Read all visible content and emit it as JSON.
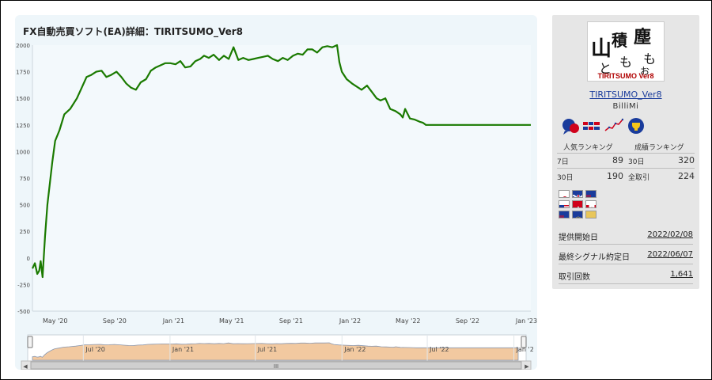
{
  "chart": {
    "title": "FX自動売買ソフト(EA)詳細：TIRITSUMO_Ver8",
    "y_ticks": [
      "2000",
      "1750",
      "1500",
      "1250",
      "1000",
      "750",
      "500",
      "250",
      "0",
      "-250",
      "-500"
    ],
    "x_ticks": [
      "May '20",
      "Sep '20",
      "Jan '21",
      "May '21",
      "Sep '21",
      "Jan '22",
      "May '22",
      "Sep '22",
      "Jan '23"
    ],
    "nav_ticks": [
      "Jul '20",
      "Jan '21",
      "Jul '21",
      "Jan '22",
      "Jul '22",
      "Jan '2"
    ],
    "scroll_grip": "III",
    "line_color": "#1a7a00",
    "nav_fill": "#f2c9a0"
  },
  "chart_data": {
    "type": "line",
    "title": "FX自動売買ソフト(EA)詳細：TIRITSUMO_Ver8",
    "xlabel": "",
    "ylabel": "",
    "ylim": [
      -500,
      2000
    ],
    "xlim": [
      "2020-03-15",
      "2023-01-10"
    ],
    "series": [
      {
        "x": [
          "2020-03-15",
          "2020-03-20",
          "2020-03-25",
          "2020-03-29",
          "2020-04-01",
          "2020-04-05",
          "2020-04-10",
          "2020-04-15",
          "2020-04-20",
          "2020-04-25",
          "2020-05-01",
          "2020-05-10",
          "2020-05-20",
          "2020-06-01",
          "2020-06-15",
          "2020-06-25",
          "2020-07-05",
          "2020-07-15",
          "2020-07-25",
          "2020-08-05",
          "2020-08-15",
          "2020-08-25",
          "2020-09-05",
          "2020-09-15",
          "2020-09-25",
          "2020-10-05",
          "2020-10-15",
          "2020-10-25",
          "2020-11-05",
          "2020-11-15",
          "2020-11-25",
          "2020-12-05",
          "2020-12-15",
          "2020-12-25",
          "2021-01-05",
          "2021-01-15",
          "2021-01-25",
          "2021-02-05",
          "2021-02-15",
          "2021-02-25",
          "2021-03-05",
          "2021-03-15",
          "2021-03-25",
          "2021-04-05",
          "2021-04-15",
          "2021-04-25",
          "2021-05-05",
          "2021-05-15",
          "2021-05-25",
          "2021-06-05",
          "2021-06-15",
          "2021-06-25",
          "2021-07-05",
          "2021-07-15",
          "2021-07-25",
          "2021-08-05",
          "2021-08-15",
          "2021-08-25",
          "2021-09-05",
          "2021-09-15",
          "2021-09-25",
          "2021-10-05",
          "2021-10-15",
          "2021-10-25",
          "2021-11-05",
          "2021-11-15",
          "2021-11-25",
          "2021-12-05",
          "2021-12-10",
          "2021-12-15",
          "2021-12-25",
          "2022-01-05",
          "2022-01-15",
          "2022-01-25",
          "2022-02-05",
          "2022-02-15",
          "2022-02-25",
          "2022-03-05",
          "2022-03-15",
          "2022-03-25",
          "2022-04-05",
          "2022-04-15",
          "2022-04-20",
          "2022-04-25",
          "2022-05-05",
          "2022-05-15",
          "2022-05-25",
          "2022-06-01",
          "2022-06-07",
          "2022-07-01",
          "2022-09-01",
          "2022-11-01",
          "2023-01-10"
        ],
        "y": [
          -100,
          -50,
          -150,
          -120,
          -30,
          -180,
          200,
          500,
          700,
          900,
          1100,
          1200,
          1350,
          1400,
          1500,
          1600,
          1700,
          1720,
          1750,
          1760,
          1700,
          1720,
          1750,
          1700,
          1640,
          1600,
          1580,
          1650,
          1680,
          1760,
          1790,
          1810,
          1830,
          1830,
          1820,
          1850,
          1790,
          1800,
          1850,
          1870,
          1900,
          1880,
          1910,
          1860,
          1900,
          1870,
          1980,
          1860,
          1880,
          1860,
          1870,
          1880,
          1890,
          1900,
          1870,
          1850,
          1880,
          1860,
          1900,
          1920,
          1910,
          1960,
          1960,
          1930,
          1980,
          1990,
          1980,
          2000,
          1840,
          1750,
          1680,
          1640,
          1610,
          1580,
          1620,
          1560,
          1500,
          1480,
          1500,
          1400,
          1380,
          1350,
          1320,
          1400,
          1310,
          1300,
          1280,
          1270,
          1250,
          1250,
          1250,
          1250,
          1250
        ]
      }
    ]
  },
  "panel": {
    "logo_caption": "TIRITSUMO  Ver8",
    "ea_name": "TIRITSUMO_Ver8",
    "author": "BilliMi",
    "popular_rank_label": "人気ランキング",
    "performance_rank_label": "成績ランキング",
    "rows": [
      {
        "l1": "7日",
        "v1": "89",
        "l2": "30日",
        "v2": "320"
      },
      {
        "l1": "30日",
        "v1": "190",
        "l2": "全取引",
        "v2": "224"
      }
    ],
    "info": [
      {
        "key": "提供開始日",
        "value": "2022/02/08"
      },
      {
        "key": "最終シグナル約定日",
        "value": "2022/06/07"
      },
      {
        "key": "取引回数",
        "value": "1,641"
      }
    ],
    "icons": [
      "chat-bubbles-icon",
      "currency-pairs-icon",
      "line-chart-icon",
      "trophy-icon"
    ],
    "flags": [
      "JP",
      "GB",
      "NZ",
      "US",
      "CH",
      "CA",
      "AU",
      "EU",
      "GOLD"
    ]
  }
}
